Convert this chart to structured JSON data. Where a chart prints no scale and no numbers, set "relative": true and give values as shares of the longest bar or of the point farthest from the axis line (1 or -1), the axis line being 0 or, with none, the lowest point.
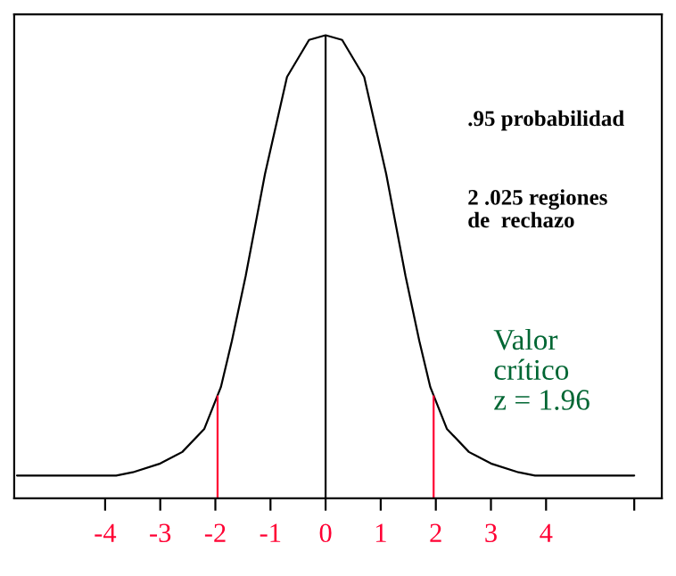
{
  "chart_data": {
    "type": "line",
    "relative": true,
    "color": "#000000",
    "x": [
      -5.6,
      -3.8,
      -3.5,
      -3.0,
      -2.6,
      -2.2,
      -1.9,
      -1.7,
      -1.45,
      -1.1,
      -0.7,
      -0.3,
      0,
      0.3,
      0.7,
      1.1,
      1.45,
      1.7,
      1.9,
      2.2,
      2.6,
      3.0,
      3.5,
      3.8,
      5.6
    ],
    "values": [
      0.049,
      0.049,
      0.056,
      0.075,
      0.1,
      0.15,
      0.24,
      0.34,
      0.48,
      0.7,
      0.91,
      0.99,
      1,
      0.99,
      0.91,
      0.7,
      0.48,
      0.34,
      0.24,
      0.15,
      0.1,
      0.075,
      0.056,
      0.049,
      0.049
    ],
    "xlim": [
      -5.65,
      6.1
    ],
    "xticks": [
      -4,
      -3,
      -2,
      -1,
      0,
      1,
      2,
      3,
      4,
      {
        "value": 5.6,
        "label": null
      }
    ],
    "ref_lines": [
      {
        "axis": "x",
        "value": -1.96,
        "color": "#ff0033"
      },
      {
        "axis": "x",
        "value": 0,
        "color": "#000000"
      },
      {
        "axis": "x",
        "value": 1.96,
        "color": "#ff0033"
      }
    ],
    "annotations": [
      ".95 probabilidad",
      "2 .025 regiones\nde  rechazo",
      "Valor\ncrítico\nz = 1.96"
    ],
    "grid": false,
    "marker": "none",
    "line_style": "solid"
  }
}
